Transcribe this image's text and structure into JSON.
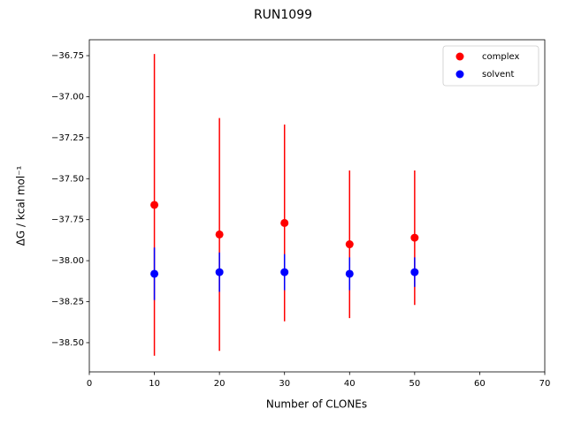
{
  "chart_data": {
    "type": "errorbar-scatter",
    "title": "RUN1099",
    "x_label": "Number of CLONEs",
    "y_label": "ΔG / kcal mol⁻¹",
    "x": [
      10,
      20,
      30,
      40,
      50
    ],
    "series": [
      {
        "name": "complex",
        "color": "#ff0000",
        "values": [
          -37.66,
          -37.84,
          -37.77,
          -37.9,
          -37.86
        ],
        "errors": [
          0.92,
          0.71,
          0.6,
          0.45,
          0.41
        ]
      },
      {
        "name": "solvent",
        "color": "#0000ff",
        "values": [
          -38.08,
          -38.07,
          -38.07,
          -38.08,
          -38.07
        ],
        "errors": [
          0.16,
          0.12,
          0.11,
          0.1,
          0.09
        ]
      }
    ],
    "xlim": [
      0,
      70
    ],
    "xticks": [
      0,
      10,
      20,
      30,
      40,
      50,
      60,
      70
    ],
    "ylim": [
      -38.678,
      -36.653
    ],
    "yticks": [
      {
        "value": -38.5,
        "label": "−38.50"
      },
      {
        "value": -38.25,
        "label": "−38.25"
      },
      {
        "value": -38.0,
        "label": "−38.00"
      },
      {
        "value": -37.75,
        "label": "−37.75"
      },
      {
        "value": -37.5,
        "label": "−37.50"
      },
      {
        "value": -37.25,
        "label": "−37.25"
      },
      {
        "value": -37.0,
        "label": "−37.00"
      },
      {
        "value": -36.75,
        "label": "−36.75"
      }
    ],
    "legend": "upper right",
    "grid": false
  }
}
